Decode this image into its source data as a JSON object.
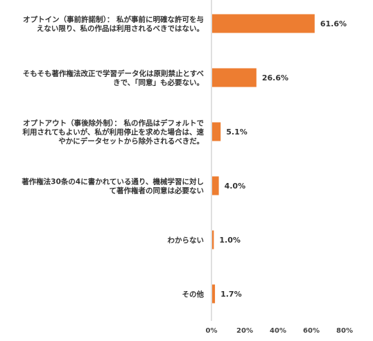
{
  "chart_data": {
    "type": "bar",
    "orientation": "horizontal",
    "categories": [
      [
        "オプトイン（事前許諾制）： 私が事前に明確な許可を与",
        "えない限り、私の作品は利用されるべきではない。"
      ],
      [
        "そもそも著作権法改正で学習データ化は原則禁止とすべ",
        "きで、「同意」も必要ない。"
      ],
      [
        "オプトアウト（事後除外制）： 私の作品はデフォルトで",
        "利用されてもよいが、私が利用停止を求めた場合は、速",
        "やかにデータセットから除外されるべきだ。"
      ],
      [
        "著作権法30条の4に書かれている通り、機械学習に対し",
        "て著作権者の同意は必要ない"
      ],
      [
        "わからない"
      ],
      [
        "その他"
      ]
    ],
    "values": [
      61.6,
      26.6,
      5.1,
      4.0,
      1.0,
      1.7
    ],
    "value_labels": [
      "61.6%",
      "26.6%",
      "5.1%",
      "4.0%",
      "1.0%",
      "1.7%"
    ],
    "xlim": [
      0,
      80
    ],
    "xticks": [
      0,
      20,
      40,
      60,
      80
    ],
    "xtick_labels": [
      "0%",
      "20%",
      "40%",
      "60%",
      "80%"
    ],
    "grid": false,
    "bar_color": "#ED7D31",
    "axis_color": "#BFBFBF"
  }
}
